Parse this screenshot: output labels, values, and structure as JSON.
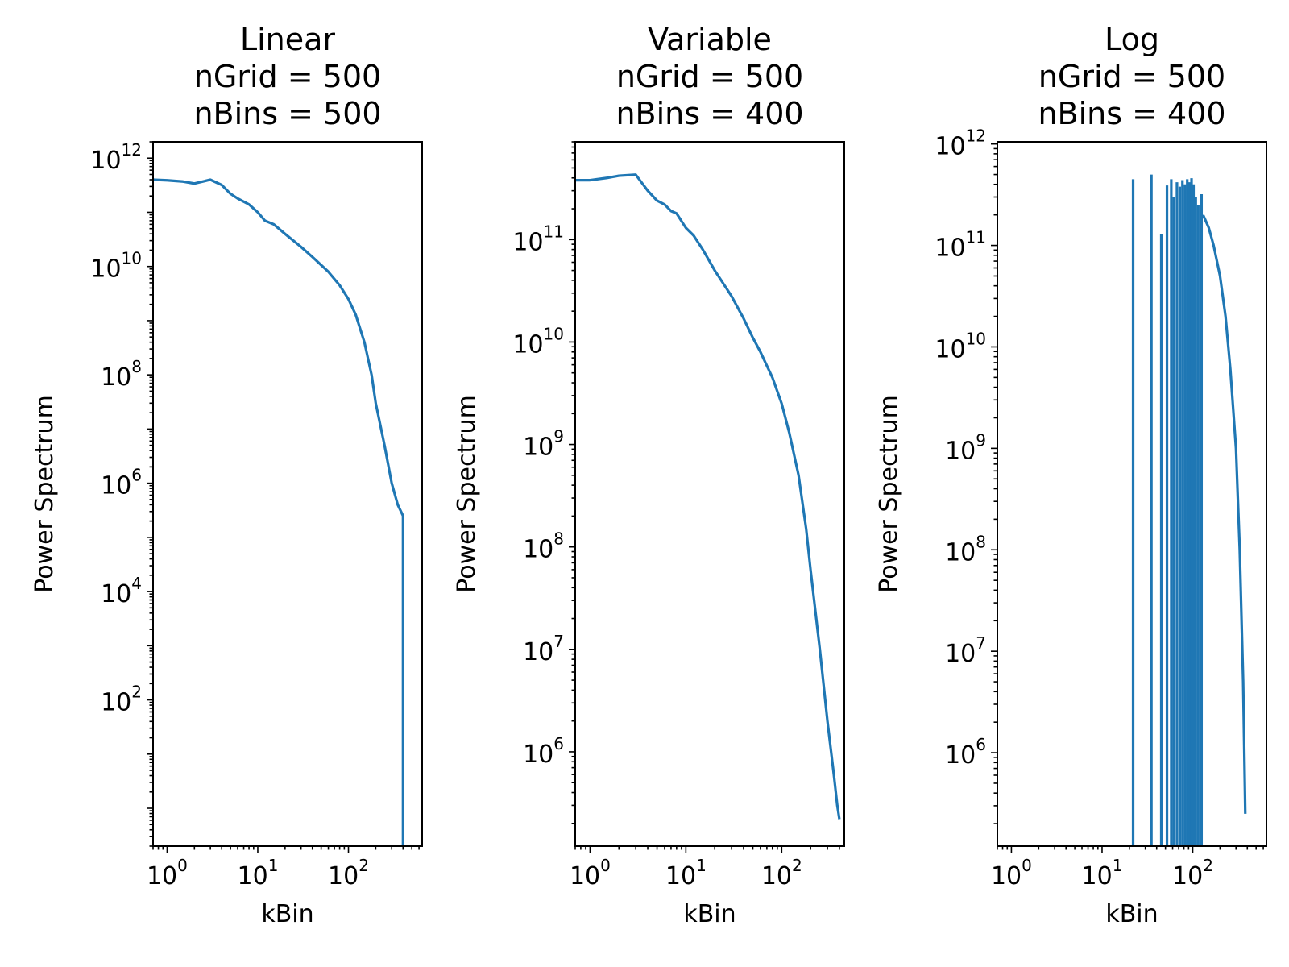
{
  "chart_data": [
    {
      "type": "line",
      "title_lines": [
        "Linear",
        "nGrid = 500",
        "nBins = 500"
      ],
      "xlabel": "kBin",
      "ylabel": "Power Spectrum",
      "xscale": "log",
      "yscale": "log",
      "xlim": [
        0.7,
        650
      ],
      "ylim": [
        0.2,
        2000000000000
      ],
      "x_ticks": [
        1,
        10,
        100
      ],
      "y_ticks": [
        100,
        10000,
        1000000,
        100000000,
        10000000000,
        1000000000000
      ],
      "grid": false,
      "color": "#1f77b4",
      "series": [
        {
          "x": [
            0.7,
            1,
            1.5,
            2,
            3,
            4,
            5,
            6,
            8,
            10,
            12,
            15,
            20,
            30,
            40,
            60,
            80,
            100,
            120,
            150,
            180,
            200,
            250,
            300,
            350,
            380,
            400,
            400
          ],
          "y": [
            400000000000,
            390000000000,
            370000000000,
            340000000000,
            400000000000,
            320000000000,
            220000000000,
            180000000000,
            140000000000,
            100000000000,
            70000000000,
            60000000000,
            40000000000,
            23000000000,
            15000000000,
            8000000000,
            4500000000,
            2500000000,
            1300000000,
            400000000,
            100000000,
            30000000,
            5000000,
            1000000,
            400000,
            300000,
            250000,
            0.2
          ]
        }
      ]
    },
    {
      "type": "line",
      "title_lines": [
        "Variable",
        "nGrid = 500",
        "nBins = 400"
      ],
      "xlabel": "kBin",
      "ylabel": "Power Spectrum",
      "xscale": "log",
      "yscale": "log",
      "xlim": [
        0.7,
        450
      ],
      "ylim": [
        120000,
        900000000000
      ],
      "x_ticks": [
        1,
        10,
        100
      ],
      "y_ticks": [
        1000000,
        10000000,
        100000000,
        1000000000,
        10000000000,
        100000000000
      ],
      "grid": false,
      "color": "#1f77b4",
      "series": [
        {
          "x": [
            0.7,
            1,
            1.5,
            2,
            3,
            4,
            5,
            6,
            7,
            8,
            10,
            12,
            15,
            20,
            30,
            40,
            50,
            60,
            80,
            100,
            120,
            150,
            180,
            200,
            250,
            300,
            350,
            380,
            400
          ],
          "y": [
            380000000000,
            380000000000,
            400000000000,
            420000000000,
            430000000000,
            300000000000,
            240000000000,
            220000000000,
            190000000000,
            180000000000,
            130000000000,
            110000000000,
            80000000000,
            50000000000,
            28000000000,
            17000000000,
            11000000000,
            8000000000,
            4500000000,
            2500000000,
            1300000000,
            500000000,
            150000000,
            60000000,
            10000000,
            2000000,
            600000,
            300000,
            220000
          ]
        }
      ]
    },
    {
      "type": "line",
      "title_lines": [
        "Log",
        "nGrid = 500",
        "nBins = 400"
      ],
      "xlabel": "kBin",
      "ylabel": "Power Spectrum",
      "xscale": "log",
      "yscale": "log",
      "xlim": [
        0.7,
        650
      ],
      "ylim": [
        120000,
        1050000000000
      ],
      "x_ticks": [
        1,
        10,
        100
      ],
      "y_ticks": [
        1000000,
        10000000,
        100000000,
        1000000000,
        10000000000,
        100000000000,
        1000000000000
      ],
      "grid": false,
      "color": "#1f77b4",
      "spikes": [
        {
          "x": 22,
          "y": 450000000000
        },
        {
          "x": 35,
          "y": 500000000000
        },
        {
          "x": 45,
          "y": 130000000000
        },
        {
          "x": 52,
          "y": 390000000000
        },
        {
          "x": 58,
          "y": 450000000000
        },
        {
          "x": 62,
          "y": 300000000000
        },
        {
          "x": 67,
          "y": 420000000000
        },
        {
          "x": 72,
          "y": 380000000000
        },
        {
          "x": 77,
          "y": 440000000000
        },
        {
          "x": 82,
          "y": 400000000000
        },
        {
          "x": 87,
          "y": 450000000000
        },
        {
          "x": 92,
          "y": 420000000000
        },
        {
          "x": 97,
          "y": 460000000000
        },
        {
          "x": 102,
          "y": 400000000000
        },
        {
          "x": 108,
          "y": 300000000000
        },
        {
          "x": 115,
          "y": 250000000000
        },
        {
          "x": 125,
          "y": 320000000000
        }
      ],
      "series": [
        {
          "x": [
            130,
            150,
            170,
            200,
            230,
            260,
            300,
            330,
            360,
            380
          ],
          "y": [
            200000000000,
            150000000000,
            100000000000,
            50000000000,
            20000000000,
            6000000000,
            1000000000,
            100000000,
            5000000,
            250000
          ]
        }
      ]
    }
  ]
}
